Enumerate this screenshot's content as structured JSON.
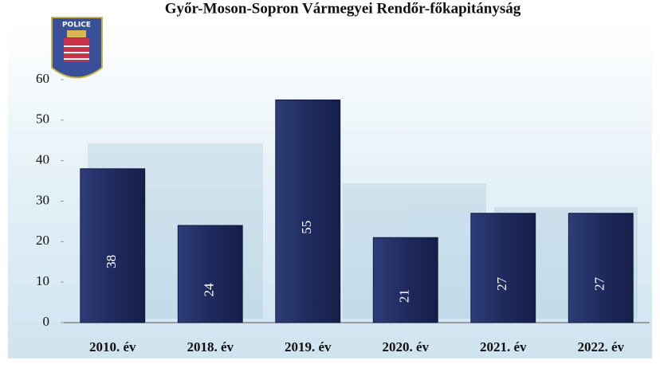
{
  "logo_text": "POLICE",
  "chart_data": {
    "type": "bar",
    "title": "Győr-Moson-Sopron Vármegyei Rendőr-főkapitányság",
    "categories": [
      "2010. év",
      "2018. év",
      "2019. év",
      "2020. év",
      "2021. év",
      "2022. év"
    ],
    "values": [
      38,
      24,
      55,
      21,
      27,
      27
    ],
    "color": "#1f2b5e",
    "ylim": [
      0,
      60
    ],
    "yticks": [
      0,
      10,
      20,
      30,
      40,
      50,
      60
    ],
    "grid": false
  }
}
